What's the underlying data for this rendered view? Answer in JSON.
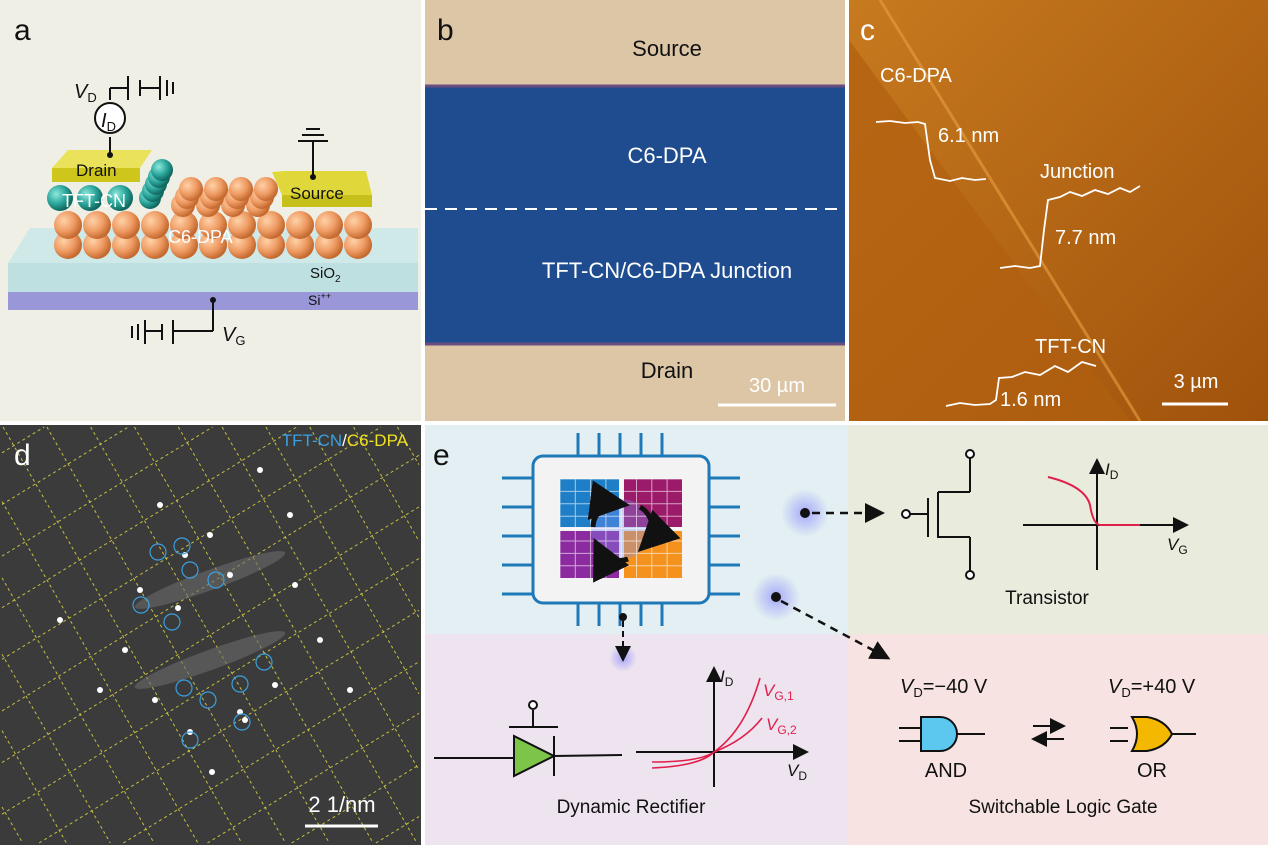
{
  "panels": {
    "a": {
      "letter": "a",
      "vd": "V",
      "vd_sub": "D",
      "id": "I",
      "id_sub": "D",
      "vg": "V",
      "vg_sub": "G",
      "drain": "Drain",
      "source": "Source",
      "tftcn": "TFT-CN",
      "c6dpa": "C6-DPA",
      "sio2": "SiO",
      "sio2_sub": "2",
      "si": "Si",
      "si_sup": "++",
      "colors": {
        "background": "#f0efe6",
        "electrode": "#d9cf2a",
        "tftcn": "#2aa59a",
        "c6dpa": "#eea06a",
        "sio2": "#bfe0e0",
        "si": "#9a97d8"
      }
    },
    "b": {
      "letter": "b",
      "source": "Source",
      "c6dpa": "C6-DPA",
      "junction": "TFT-CN/C6-DPA Junction",
      "drain": "Drain",
      "scale": "30 µm",
      "colors": {
        "electrode": "#dcc6a6",
        "film": "#1f4c8e"
      }
    },
    "c": {
      "letter": "c",
      "c6dpa": "C6-DPA",
      "c6dpa_height": "6.1 nm",
      "junction": "Junction",
      "junction_height": "7.7 nm",
      "tftcn": "TFT-CN",
      "tftcn_height": "1.6 nm",
      "scale": "3 µm"
    },
    "d": {
      "letter": "d",
      "legend_a": "TFT-CN",
      "legend_sep": "/",
      "legend_b": "C6-DPA",
      "scale": "2 1/nm",
      "colors": {
        "tftcn": "#3aa0e0",
        "c6dpa": "#f0e020"
      }
    },
    "e": {
      "letter": "e",
      "transistor": {
        "title": "Transistor",
        "y_axis": "I",
        "y_sub": "D",
        "x_axis": "V",
        "x_sub": "G"
      },
      "rectifier": {
        "title": "Dynamic Rectifier",
        "y_axis": "I",
        "y_sub": "D",
        "x_axis": "V",
        "x_sub": "D",
        "curve1": "V",
        "curve1_sub": "G,1",
        "curve2": "V",
        "curve2_sub": "G,2"
      },
      "logic": {
        "title": "Switchable Logic Gate",
        "left_v": "V",
        "left_sub": "D",
        "left_val": "=−40 V",
        "right_v": "V",
        "right_sub": "D",
        "right_val": "=+40 V",
        "and": "AND",
        "or": "OR"
      },
      "colors": {
        "chip_bg": "#e3eff2",
        "transistor_bg": "#e9ebdc",
        "rectifier_bg": "#eee4f0",
        "logic_bg": "#f7e3e1",
        "and_gate": "#5cc8f0",
        "or_gate": "#f5b800",
        "diode": "#7cc548",
        "curve": "#e0204a"
      }
    }
  }
}
